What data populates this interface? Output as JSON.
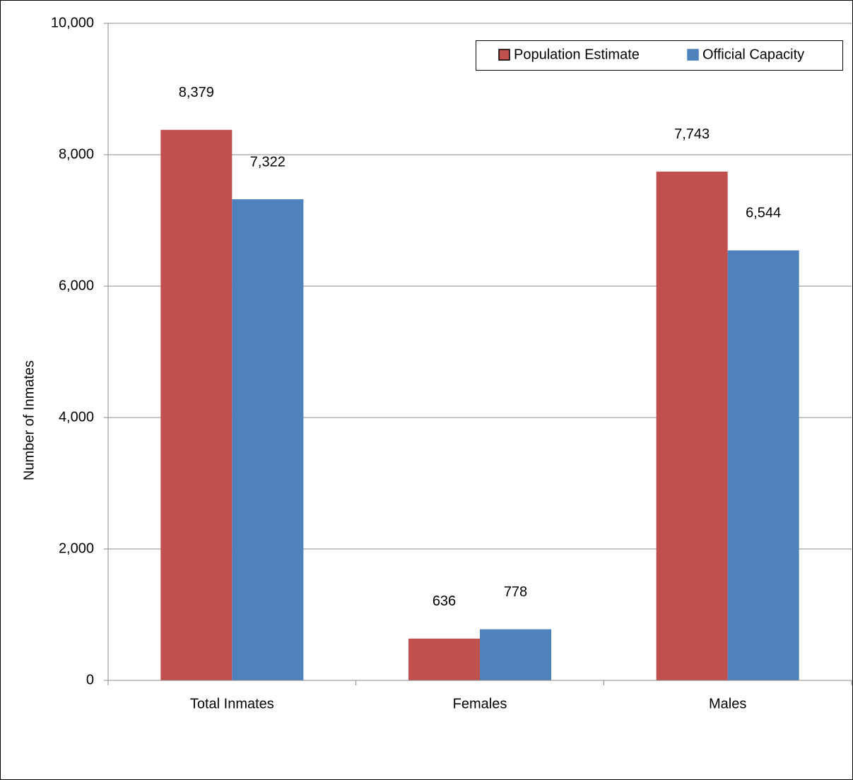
{
  "chart_data": {
    "type": "bar",
    "y_label": "Number of Inmates",
    "categories": [
      "Total Inmates",
      "Females",
      "Males"
    ],
    "series": [
      {
        "name": "Population Estimate",
        "color": "#c0504d",
        "values": [
          8379,
          636,
          7743
        ],
        "value_labels": [
          "8,379",
          "636",
          "7,743"
        ]
      },
      {
        "name": "Official Capacity",
        "color": "#4f81bd",
        "values": [
          7322,
          778,
          6544
        ],
        "value_labels": [
          "7,322",
          "778",
          "6,544"
        ]
      }
    ],
    "ylim": [
      0,
      10000
    ],
    "yticks": [
      0,
      {
        "value": 2000,
        "label": "2,000"
      },
      {
        "value": 4000,
        "label": "4,000"
      },
      {
        "value": 6000,
        "label": "6,000"
      },
      {
        "value": 8000,
        "label": "8,000"
      },
      {
        "value": 10000,
        "label": "10,000"
      }
    ],
    "grid": true,
    "legend": "top-right"
  }
}
